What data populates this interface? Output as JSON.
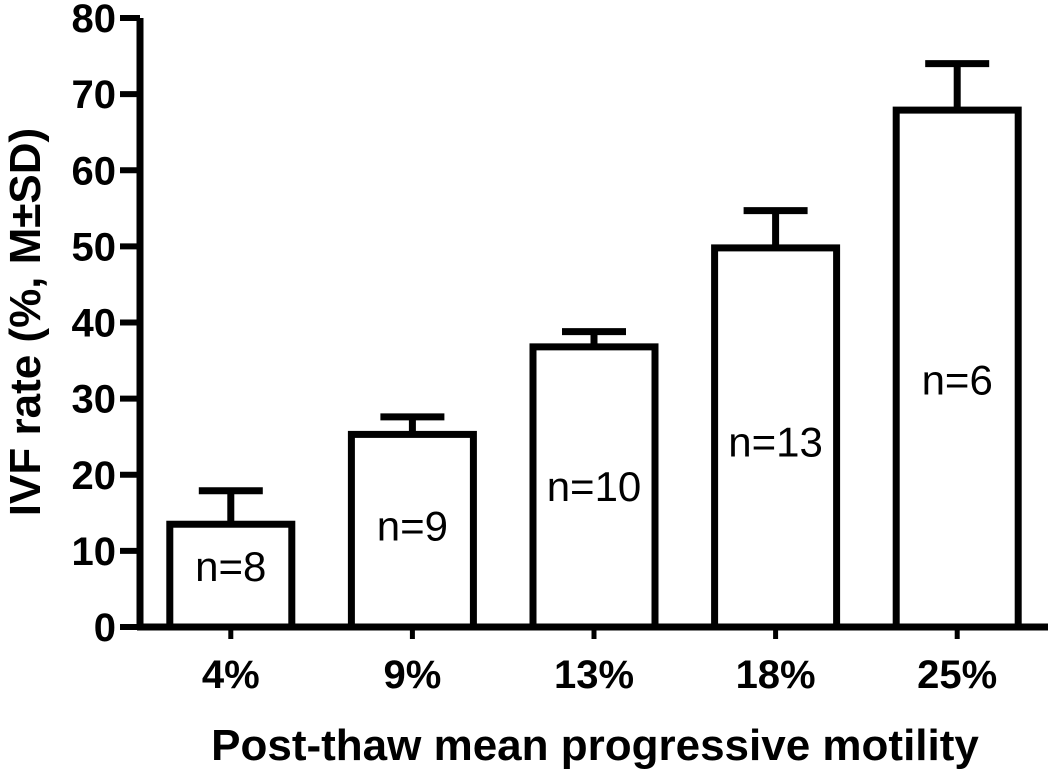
{
  "chart_data": {
    "type": "bar",
    "xlabel": "Post-thaw mean progressive motility",
    "ylabel": "IVF rate (%, M±SD)",
    "ylim": [
      0,
      80
    ],
    "yticks": [
      0,
      10,
      20,
      30,
      40,
      50,
      60,
      70,
      80
    ],
    "categories": [
      "4%",
      "9%",
      "13%",
      "18%",
      "25%"
    ],
    "values": [
      13.5,
      25.3,
      36.8,
      49.8,
      67.9
    ],
    "errors": [
      4.4,
      2.3,
      2.0,
      4.9,
      6.1
    ],
    "sample_sizes": [
      "n=8",
      "n=9",
      "n=10",
      "n=13",
      "n=6"
    ],
    "bar_fill": "#ffffff",
    "bar_stroke": "#000000",
    "grid": false,
    "legend": "none"
  }
}
